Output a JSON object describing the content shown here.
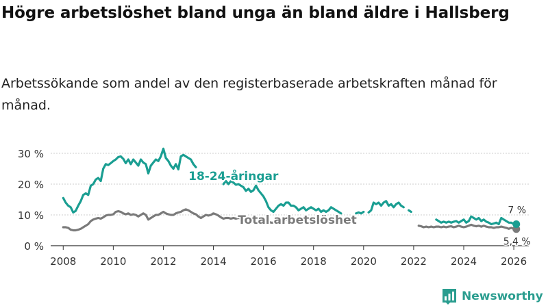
{
  "header": {
    "title": "Högre arbetslöshet bland unga än bland äldre i Hallsberg",
    "subtitle": "Arbetssökande som andel av den registerbaserade arbetskraften månad för månad."
  },
  "brand": {
    "name": "Newsworthy",
    "color": "#2a9d8f"
  },
  "chart_data": {
    "type": "line",
    "title": "Högre arbetslöshet bland unga än bland äldre i Hallsberg",
    "subtitle": "Arbetssökande som andel av den registerbaserade arbetskraften månad för månad.",
    "xlabel": "",
    "ylabel": "",
    "xlim": [
      2007.5,
      2026.6
    ],
    "ylim": [
      0,
      30
    ],
    "x_ticks": [
      2008,
      2010,
      2012,
      2014,
      2016,
      2018,
      2020,
      2022,
      2024,
      2026
    ],
    "x_tick_labels": [
      "2008",
      "2010",
      "2012",
      "2014",
      "2016",
      "2018",
      "2020",
      "2022",
      "2024",
      "2026"
    ],
    "y_ticks": [
      0,
      10,
      20,
      30
    ],
    "y_tick_labels": [
      "0 %",
      "10 %",
      "20 %",
      "30 %"
    ],
    "grid": {
      "horizontal": true,
      "vertical": false
    },
    "series": [
      {
        "name": "18-24-åringar",
        "color": "#1a9e92",
        "label_anchor": [
          2014.8,
          22.7
        ],
        "end_label": "7 %",
        "points": [
          [
            2008.0,
            15.5
          ],
          [
            2008.1,
            14.0
          ],
          [
            2008.2,
            13.0
          ],
          [
            2008.3,
            12.5
          ],
          [
            2008.4,
            10.8
          ],
          [
            2008.5,
            11.3
          ],
          [
            2008.6,
            13.0
          ],
          [
            2008.7,
            14.5
          ],
          [
            2008.8,
            16.5
          ],
          [
            2008.9,
            17.0
          ],
          [
            2009.0,
            16.5
          ],
          [
            2009.1,
            19.5
          ],
          [
            2009.2,
            20.0
          ],
          [
            2009.3,
            21.5
          ],
          [
            2009.4,
            22.0
          ],
          [
            2009.5,
            21.0
          ],
          [
            2009.6,
            25.0
          ],
          [
            2009.7,
            26.5
          ],
          [
            2009.8,
            26.2
          ],
          [
            2009.9,
            26.8
          ],
          [
            2010.0,
            27.5
          ],
          [
            2010.1,
            28.0
          ],
          [
            2010.2,
            28.8
          ],
          [
            2010.3,
            29.0
          ],
          [
            2010.4,
            28.2
          ],
          [
            2010.5,
            26.8
          ],
          [
            2010.6,
            28.0
          ],
          [
            2010.7,
            26.5
          ],
          [
            2010.8,
            28.0
          ],
          [
            2010.9,
            27.0
          ],
          [
            2011.0,
            26.0
          ],
          [
            2011.1,
            28.0
          ],
          [
            2011.2,
            27.0
          ],
          [
            2011.3,
            26.5
          ],
          [
            2011.4,
            23.5
          ],
          [
            2011.5,
            26.0
          ],
          [
            2011.6,
            27.0
          ],
          [
            2011.7,
            28.0
          ],
          [
            2011.8,
            27.5
          ],
          [
            2011.9,
            29.0
          ],
          [
            2012.0,
            31.5
          ],
          [
            2012.1,
            28.5
          ],
          [
            2012.2,
            27.5
          ],
          [
            2012.3,
            26.0
          ],
          [
            2012.4,
            25.0
          ],
          [
            2012.5,
            26.5
          ],
          [
            2012.6,
            24.8
          ],
          [
            2012.7,
            29.0
          ],
          [
            2012.8,
            29.5
          ],
          [
            2012.9,
            29.0
          ],
          [
            2013.0,
            28.5
          ],
          [
            2013.1,
            28.0
          ],
          [
            2013.2,
            26.5
          ],
          [
            2013.3,
            25.5
          ],
          null,
          [
            2014.4,
            20.0
          ],
          [
            2014.5,
            21.0
          ],
          [
            2014.6,
            20.0
          ],
          [
            2014.7,
            21.0
          ],
          [
            2014.8,
            20.5
          ],
          [
            2014.9,
            19.8
          ],
          [
            2015.0,
            20.0
          ],
          [
            2015.1,
            19.5
          ],
          [
            2015.2,
            19.0
          ],
          [
            2015.3,
            17.8
          ],
          [
            2015.4,
            18.5
          ],
          [
            2015.5,
            17.5
          ],
          [
            2015.6,
            18.0
          ],
          [
            2015.7,
            19.5
          ],
          [
            2015.8,
            18.0
          ],
          [
            2015.9,
            17.0
          ],
          [
            2016.0,
            16.0
          ],
          [
            2016.1,
            14.5
          ],
          [
            2016.2,
            12.5
          ],
          [
            2016.3,
            11.5
          ],
          [
            2016.4,
            11.0
          ],
          [
            2016.5,
            12.0
          ],
          [
            2016.6,
            13.0
          ],
          [
            2016.7,
            13.5
          ],
          [
            2016.8,
            13.0
          ],
          [
            2016.9,
            14.0
          ],
          [
            2017.0,
            14.0
          ],
          [
            2017.1,
            13.0
          ],
          [
            2017.2,
            13.0
          ],
          [
            2017.3,
            12.5
          ],
          [
            2017.4,
            11.5
          ],
          [
            2017.5,
            12.0
          ],
          [
            2017.6,
            12.5
          ],
          [
            2017.7,
            11.5
          ],
          [
            2017.8,
            12.0
          ],
          [
            2017.9,
            12.5
          ],
          [
            2018.0,
            12.0
          ],
          [
            2018.1,
            11.5
          ],
          [
            2018.2,
            12.0
          ],
          [
            2018.3,
            11.0
          ],
          [
            2018.4,
            11.5
          ],
          [
            2018.5,
            11.0
          ],
          [
            2018.6,
            11.5
          ],
          [
            2018.7,
            12.5
          ],
          [
            2018.8,
            12.0
          ],
          [
            2018.9,
            11.5
          ],
          [
            2019.0,
            11.0
          ],
          [
            2019.1,
            10.5
          ],
          null,
          [
            2019.7,
            10.5
          ],
          [
            2019.8,
            10.8
          ],
          [
            2019.9,
            10.5
          ],
          [
            2020.0,
            11.0
          ],
          null,
          [
            2020.2,
            10.8
          ],
          [
            2020.3,
            11.5
          ],
          [
            2020.4,
            14.0
          ],
          [
            2020.5,
            13.5
          ],
          [
            2020.6,
            14.0
          ],
          [
            2020.7,
            13.0
          ],
          [
            2020.8,
            14.0
          ],
          [
            2020.9,
            14.5
          ],
          [
            2021.0,
            13.0
          ],
          [
            2021.1,
            13.5
          ],
          [
            2021.2,
            12.5
          ],
          [
            2021.3,
            13.5
          ],
          [
            2021.4,
            14.0
          ],
          [
            2021.5,
            13.0
          ],
          [
            2021.6,
            12.5
          ],
          null,
          [
            2021.8,
            11.5
          ],
          [
            2021.9,
            11.0
          ],
          null,
          [
            2022.9,
            8.5
          ],
          [
            2023.0,
            8.0
          ],
          [
            2023.1,
            7.5
          ],
          [
            2023.2,
            7.8
          ],
          [
            2023.3,
            7.5
          ],
          [
            2023.4,
            7.8
          ],
          [
            2023.5,
            7.5
          ],
          [
            2023.6,
            7.8
          ],
          [
            2023.7,
            8.0
          ],
          [
            2023.8,
            7.5
          ],
          [
            2023.9,
            8.0
          ],
          [
            2024.0,
            8.5
          ],
          [
            2024.1,
            7.5
          ],
          [
            2024.2,
            8.0
          ],
          [
            2024.3,
            9.5
          ],
          [
            2024.4,
            9.0
          ],
          [
            2024.5,
            8.5
          ],
          [
            2024.6,
            9.0
          ],
          [
            2024.7,
            8.0
          ],
          [
            2024.8,
            8.5
          ],
          [
            2024.9,
            7.8
          ],
          [
            2025.0,
            7.5
          ],
          [
            2025.1,
            7.0
          ],
          [
            2025.2,
            7.2
          ],
          [
            2025.3,
            7.5
          ],
          [
            2025.4,
            7.0
          ],
          [
            2025.5,
            9.0
          ],
          [
            2025.6,
            8.5
          ],
          [
            2025.7,
            8.0
          ],
          [
            2025.8,
            7.5
          ],
          [
            2025.9,
            7.5
          ],
          [
            2026.0,
            7.0
          ],
          [
            2026.1,
            7.0
          ]
        ]
      },
      {
        "name": "Total arbetslöshet",
        "color": "#7a7a7a",
        "label_anchor": [
          2017.35,
          8.4
        ],
        "end_label": "5,4 %",
        "points": [
          [
            2008.0,
            6.0
          ],
          [
            2008.1,
            6.0
          ],
          [
            2008.2,
            5.8
          ],
          [
            2008.3,
            5.2
          ],
          [
            2008.4,
            5.0
          ],
          [
            2008.5,
            5.0
          ],
          [
            2008.6,
            5.2
          ],
          [
            2008.7,
            5.5
          ],
          [
            2008.8,
            6.0
          ],
          [
            2008.9,
            6.5
          ],
          [
            2009.0,
            7.0
          ],
          [
            2009.1,
            8.0
          ],
          [
            2009.2,
            8.5
          ],
          [
            2009.3,
            8.8
          ],
          [
            2009.4,
            9.0
          ],
          [
            2009.5,
            8.8
          ],
          [
            2009.6,
            9.2
          ],
          [
            2009.7,
            9.8
          ],
          [
            2009.8,
            10.0
          ],
          [
            2009.9,
            10.0
          ],
          [
            2010.0,
            10.2
          ],
          [
            2010.1,
            11.0
          ],
          [
            2010.2,
            11.2
          ],
          [
            2010.3,
            11.0
          ],
          [
            2010.4,
            10.5
          ],
          [
            2010.5,
            10.2
          ],
          [
            2010.6,
            10.5
          ],
          [
            2010.7,
            10.0
          ],
          [
            2010.8,
            10.2
          ],
          [
            2010.9,
            10.0
          ],
          [
            2011.0,
            9.5
          ],
          [
            2011.1,
            10.0
          ],
          [
            2011.2,
            10.5
          ],
          [
            2011.3,
            10.0
          ],
          [
            2011.4,
            8.5
          ],
          [
            2011.5,
            9.0
          ],
          [
            2011.6,
            9.5
          ],
          [
            2011.7,
            10.0
          ],
          [
            2011.8,
            10.0
          ],
          [
            2011.9,
            10.5
          ],
          [
            2012.0,
            11.0
          ],
          [
            2012.1,
            10.5
          ],
          [
            2012.2,
            10.2
          ],
          [
            2012.3,
            10.0
          ],
          [
            2012.4,
            10.0
          ],
          [
            2012.5,
            10.5
          ],
          [
            2012.6,
            10.8
          ],
          [
            2012.7,
            11.0
          ],
          [
            2012.8,
            11.5
          ],
          [
            2012.9,
            11.8
          ],
          [
            2013.0,
            11.5
          ],
          [
            2013.1,
            11.0
          ],
          [
            2013.2,
            10.5
          ],
          [
            2013.3,
            10.2
          ],
          [
            2013.4,
            9.5
          ],
          [
            2013.5,
            9.0
          ],
          [
            2013.6,
            9.5
          ],
          [
            2013.7,
            10.0
          ],
          [
            2013.8,
            9.8
          ],
          [
            2013.9,
            10.0
          ],
          [
            2014.0,
            10.5
          ],
          [
            2014.1,
            10.2
          ],
          [
            2014.2,
            9.8
          ],
          [
            2014.3,
            9.2
          ],
          [
            2014.4,
            8.8
          ],
          [
            2014.5,
            9.0
          ],
          [
            2014.6,
            9.0
          ],
          [
            2014.7,
            8.8
          ],
          [
            2014.8,
            9.0
          ],
          [
            2014.9,
            8.8
          ],
          [
            2015.0,
            9.0
          ],
          [
            2015.1,
            8.8
          ],
          [
            2015.2,
            8.5
          ],
          [
            2015.3,
            8.5
          ],
          [
            2015.4,
            8.8
          ],
          [
            2015.5,
            8.0
          ],
          [
            2015.6,
            8.5
          ],
          [
            2015.7,
            9.0
          ],
          [
            2015.8,
            8.5
          ],
          [
            2015.9,
            8.5
          ],
          [
            2016.0,
            8.8
          ],
          [
            2016.1,
            8.2
          ],
          [
            2016.2,
            7.8
          ],
          [
            2016.3,
            7.5
          ],
          [
            2016.4,
            7.5
          ],
          [
            2016.5,
            7.8
          ],
          [
            2016.6,
            8.0
          ],
          [
            2016.7,
            8.2
          ],
          [
            2016.8,
            8.0
          ],
          [
            2016.9,
            8.5
          ],
          [
            2017.0,
            8.5
          ],
          [
            2017.1,
            8.2
          ],
          [
            2017.2,
            8.0
          ],
          null,
          [
            2022.2,
            6.5
          ],
          [
            2022.3,
            6.3
          ],
          [
            2022.4,
            6.0
          ],
          [
            2022.5,
            6.2
          ],
          [
            2022.6,
            6.0
          ],
          [
            2022.7,
            6.2
          ],
          [
            2022.8,
            6.0
          ],
          [
            2022.9,
            6.2
          ],
          [
            2023.0,
            6.2
          ],
          [
            2023.1,
            6.0
          ],
          [
            2023.2,
            6.2
          ],
          [
            2023.3,
            6.0
          ],
          [
            2023.4,
            6.2
          ],
          [
            2023.5,
            6.3
          ],
          [
            2023.6,
            6.0
          ],
          [
            2023.7,
            6.2
          ],
          [
            2023.8,
            6.5
          ],
          [
            2023.9,
            6.2
          ],
          [
            2024.0,
            6.0
          ],
          [
            2024.1,
            6.2
          ],
          [
            2024.2,
            6.5
          ],
          [
            2024.3,
            6.8
          ],
          [
            2024.4,
            6.5
          ],
          [
            2024.5,
            6.3
          ],
          [
            2024.6,
            6.5
          ],
          [
            2024.7,
            6.2
          ],
          [
            2024.8,
            6.5
          ],
          [
            2024.9,
            6.2
          ],
          [
            2025.0,
            6.0
          ],
          [
            2025.1,
            6.0
          ],
          [
            2025.2,
            5.8
          ],
          [
            2025.3,
            6.0
          ],
          [
            2025.4,
            6.0
          ],
          [
            2025.5,
            6.2
          ],
          [
            2025.6,
            6.0
          ],
          [
            2025.7,
            5.8
          ],
          [
            2025.8,
            5.5
          ],
          [
            2025.9,
            5.8
          ],
          [
            2026.0,
            5.5
          ],
          [
            2026.1,
            5.4
          ]
        ]
      }
    ]
  }
}
